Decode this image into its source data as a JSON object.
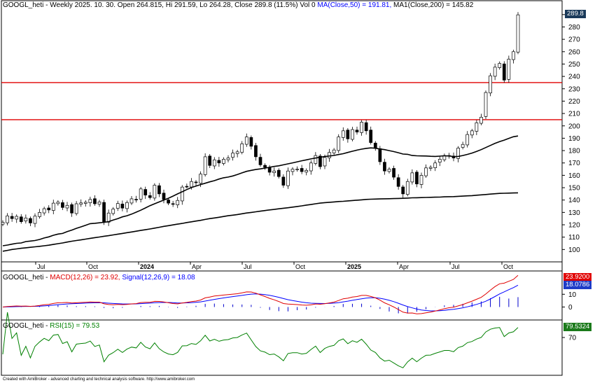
{
  "header": {
    "price_title": "GOOGL_heti - Weekly 2025. 10. 30. Open 264.815, Hi 291.59, Lo 264.28, Close 289.8 (11.5%) Vol 0",
    "ma50": "MA(Close,50) = 191.81,",
    "ma200": "MA1(Close,200) = 145.82",
    "macd_name": "GOOGL_heti - ",
    "macd_val": "MACD(12,26) = 23.92,",
    "signal_val": "Signal(12,26,9) = 18.08",
    "rsi_name": "GOOGL_heti - ",
    "rsi_val": "RSI(15) = 79.53"
  },
  "footer": {
    "credit": "Created with AmiBroker - advanced charting and technical analysis software. http://www.amibroker.com"
  },
  "tags": {
    "price": "289.8",
    "macd": "23.9200",
    "signal": "18.0786",
    "rsi": "79.5324"
  },
  "colors": {
    "candle": "#000000",
    "ma": "#000000",
    "hline": "#e00000",
    "macd": "#e00000",
    "signal": "#0000ff",
    "hist": "#0000cc",
    "rsi": "#008000",
    "grid": "#000000"
  },
  "chart_data": {
    "type": "candlestick",
    "price_axis": {
      "min": 90,
      "max": 295,
      "ticks": [
        100,
        110,
        120,
        130,
        140,
        150,
        160,
        170,
        180,
        190,
        200,
        210,
        220,
        230,
        240,
        250,
        260,
        270,
        280,
        290
      ]
    },
    "x_labels": [
      "Jul",
      "Oct",
      "2024",
      "Apr",
      "Jul",
      "Oct",
      "2025",
      "Apr",
      "Jul",
      "Oct"
    ],
    "horizontal_lines": [
      235,
      205
    ],
    "close": [
      122.0,
      127.2,
      125.0,
      126.8,
      122.5,
      125.5,
      121.5,
      127.0,
      130.0,
      133.0,
      132.0,
      137.5,
      138.3,
      134.0,
      135.7,
      129.5,
      137.0,
      137.7,
      138.2,
      140.5,
      137.0,
      138.5,
      122.5,
      129.5,
      132.7,
      137.2,
      133.5,
      138.0,
      141.0,
      140.1,
      149.0,
      144.0,
      142.0,
      152.0,
      145.0,
      140.5,
      137.5,
      136.5,
      139.7,
      150.5,
      151.0,
      155.0,
      154.0,
      161.0,
      175.0,
      168.0,
      172.5,
      170.0,
      173.0,
      174.0,
      178.0,
      179.0,
      185.5,
      191.0,
      183.5,
      175.0,
      168.5,
      166.5,
      162.5,
      163.5,
      159.0,
      152.0,
      163.5,
      165.0,
      165.0,
      163.0,
      164.0,
      170.0,
      176.0,
      167.0,
      174.5,
      178.5,
      180.5,
      191.0,
      196.0,
      189.5,
      197.0,
      195.0,
      203.0,
      196.0,
      186.5,
      182.0,
      171.0,
      163.5,
      165.0,
      158.5,
      151.0,
      145.0,
      155.0,
      162.0,
      153.0,
      160.0,
      166.0,
      166.5,
      170.0,
      173.0,
      176.0,
      176.0,
      174.0,
      182.0,
      185.0,
      193.0,
      196.0,
      202.5,
      207.0,
      227.0,
      240.5,
      247.5,
      250.5,
      237.0,
      254.0,
      260.0,
      289.8
    ],
    "ma50": [
      103.0,
      103.6,
      104.3,
      105.0,
      105.3,
      106.4,
      106.8,
      107.3,
      108.1,
      109.3,
      110.2,
      111.5,
      112.5,
      113.0,
      114.5,
      115.7,
      117.1,
      118.3,
      119.6,
      120.9,
      121.2,
      121.6,
      122.0,
      122.5,
      123.8,
      125.0,
      126.4,
      127.3,
      128.6,
      130.2,
      131.8,
      133.6,
      135.5,
      137.0,
      138.5,
      140.0,
      141.5,
      143.2,
      145.0,
      146.7,
      148.5,
      150.1,
      151.3,
      152.5,
      153.6,
      154.7,
      155.7,
      157.0,
      158.0,
      158.6,
      159.5,
      160.7,
      162.0,
      163.2,
      164.0,
      164.7,
      165.2,
      165.8,
      166.5,
      167.2,
      167.7,
      168.5,
      169.3,
      170.1,
      170.9,
      171.8,
      172.5,
      173.3,
      174.0,
      174.6,
      175.2,
      175.6,
      176.1,
      176.8,
      177.5,
      178.5,
      179.5,
      180.4,
      181.2,
      181.8,
      182.2,
      181.9,
      181.3,
      180.8,
      180.0,
      179.2,
      178.3,
      177.2,
      177.0,
      176.0,
      175.8,
      175.7,
      175.6,
      175.4,
      175.3,
      175.5,
      175.8,
      175.6,
      175.2,
      175.3,
      176.0,
      176.9,
      178.0,
      179.3,
      180.8,
      182.5,
      184.2,
      185.8,
      187.3,
      188.5,
      189.9,
      191.2,
      191.8
    ],
    "ma200": [
      98.6,
      99.3,
      100.0,
      100.5,
      101.0,
      101.4,
      101.8,
      102.2,
      102.6,
      103.0,
      103.5,
      104.1,
      104.7,
      105.3,
      106.0,
      106.7,
      107.3,
      107.8,
      108.4,
      109.0,
      109.6,
      110.1,
      110.7,
      111.2,
      111.8,
      112.4,
      113.0,
      113.6,
      114.2,
      114.8,
      115.4,
      116.0,
      116.6,
      117.3,
      118.0,
      118.7,
      119.3,
      119.9,
      120.5,
      121.1,
      121.8,
      122.4,
      123.0,
      123.6,
      124.3,
      125.0,
      125.5,
      126.1,
      126.7,
      127.3,
      127.8,
      128.3,
      128.9,
      129.5,
      130.0,
      130.5,
      131.0,
      131.5,
      132.0,
      132.4,
      132.9,
      133.4,
      133.8,
      134.3,
      134.8,
      135.3,
      135.9,
      136.4,
      137.0,
      137.5,
      137.9,
      138.2,
      138.5,
      138.8,
      139.0,
      139.3,
      139.6,
      139.9,
      140.2,
      140.5,
      140.7,
      140.8,
      140.9,
      141.0,
      141.1,
      141.2,
      141.3,
      141.4,
      141.6,
      141.8,
      141.9,
      142.0,
      142.1,
      142.2,
      142.3,
      142.4,
      142.6,
      142.7,
      142.8,
      143.0,
      143.2,
      143.4,
      143.6,
      143.9,
      144.2,
      144.5,
      144.8,
      145.1,
      145.4,
      145.5,
      145.6,
      145.7,
      145.82
    ],
    "macd": {
      "axis_ticks": [
        0,
        10
      ],
      "last_macd": 23.92,
      "last_signal": 18.08
    },
    "rsi": {
      "axis_ticks": [
        70
      ],
      "last": 79.53
    }
  }
}
